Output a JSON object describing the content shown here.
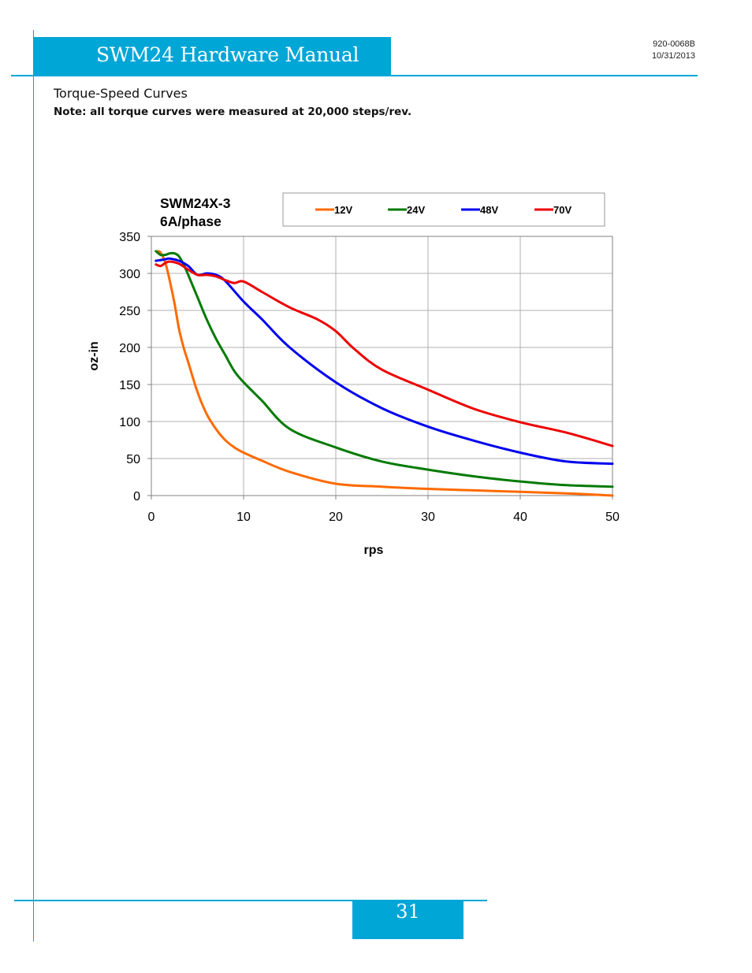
{
  "header": {
    "title": "SWM24 Hardware Manual",
    "doc_number": "920-0068B",
    "doc_date": "10/31/2013"
  },
  "section": {
    "title": "Torque-Speed Curves",
    "note": "Note: all torque curves were measured at 20,000 steps/rev."
  },
  "chart_data": {
    "type": "line",
    "title_line1": "SWM24X-3",
    "title_line2": "6A/phase",
    "xlabel": "rps",
    "ylabel": "oz-in",
    "xlim": [
      0,
      50
    ],
    "ylim": [
      0,
      350
    ],
    "xticks": [
      0,
      10,
      20,
      30,
      40,
      50
    ],
    "yticks": [
      0,
      50,
      100,
      150,
      200,
      250,
      300,
      350
    ],
    "grid": true,
    "legend_position": "top",
    "series": [
      {
        "name": "12V",
        "color": "#ff6a00",
        "x": [
          0.7,
          1.0,
          1.5,
          2.0,
          2.5,
          3.0,
          3.5,
          4.0,
          5.0,
          6.0,
          7.0,
          8.0,
          9.0,
          10.0,
          12.0,
          15.0,
          20.0,
          25.0,
          30.0,
          35.0,
          40.0,
          45.0,
          50.0
        ],
        "y": [
          330,
          328,
          315,
          290,
          260,
          225,
          200,
          180,
          140,
          110,
          90,
          75,
          65,
          58,
          47,
          32,
          16,
          12,
          9,
          7,
          5,
          3,
          0
        ]
      },
      {
        "name": "24V",
        "color": "#007a00",
        "x": [
          0.5,
          1.0,
          1.5,
          2.0,
          2.5,
          3.0,
          3.5,
          4.0,
          5.0,
          6.0,
          7.0,
          8.0,
          9.0,
          10.0,
          12.0,
          15.0,
          20.0,
          25.0,
          30.0,
          35.0,
          40.0,
          45.0,
          50.0
        ],
        "y": [
          330,
          325,
          325,
          327,
          327,
          323,
          312,
          298,
          268,
          238,
          212,
          190,
          168,
          153,
          128,
          90,
          65,
          46,
          35,
          26,
          19,
          14,
          12
        ]
      },
      {
        "name": "48V",
        "color": "#0000ee",
        "x": [
          0.5,
          1.0,
          1.5,
          2.0,
          3.0,
          4.0,
          5.0,
          6.0,
          7.0,
          8.0,
          10.0,
          12.0,
          15.0,
          20.0,
          25.0,
          30.0,
          35.0,
          40.0,
          45.0,
          50.0
        ],
        "y": [
          317,
          318,
          319,
          320,
          317,
          310,
          298,
          300,
          298,
          290,
          262,
          238,
          200,
          153,
          118,
          93,
          74,
          58,
          46,
          43
        ]
      },
      {
        "name": "70V",
        "color": "#ee0000",
        "x": [
          0.5,
          1.0,
          1.5,
          2.0,
          3.0,
          4.0,
          5.0,
          6.0,
          7.0,
          8.0,
          9.0,
          10.0,
          12.0,
          15.0,
          18.0,
          20.0,
          22.0,
          25.0,
          30.0,
          35.0,
          40.0,
          45.0,
          50.0
        ],
        "y": [
          312,
          310,
          314,
          316,
          313,
          305,
          298,
          298,
          296,
          291,
          287,
          289,
          275,
          254,
          238,
          222,
          198,
          170,
          143,
          117,
          99,
          85,
          67
        ]
      }
    ]
  },
  "footer": {
    "page_number": "31"
  }
}
